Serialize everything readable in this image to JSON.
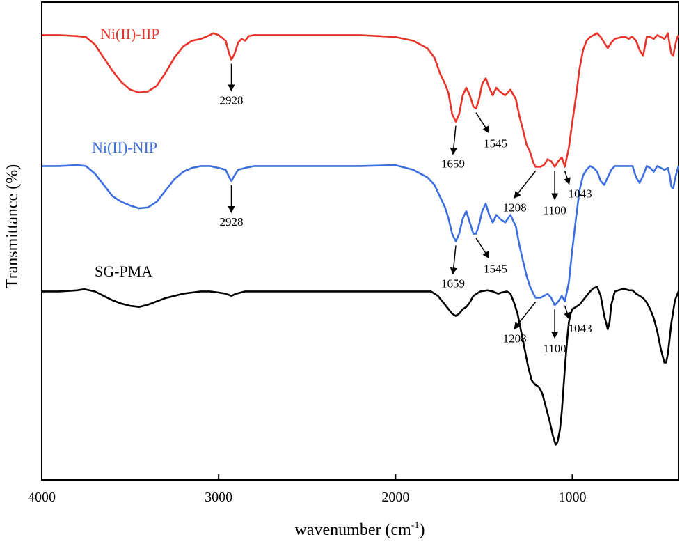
{
  "chart_data": {
    "type": "line",
    "title": "",
    "xlabel": "wavenumber (cm",
    "xlabel_sup": "-1",
    "xlabel_end": ")",
    "ylabel": "Transmittance (%)",
    "xlim": [
      4000,
      400
    ],
    "x_reversed": true,
    "y_ticks_shown": false,
    "grid": false,
    "xticks": [
      {
        "value": 4000,
        "label": "4000"
      },
      {
        "value": 3000,
        "label": "3000"
      },
      {
        "value": 2000,
        "label": "2000"
      },
      {
        "value": 1000,
        "label": "1000"
      }
    ],
    "series": [
      {
        "name": "Ni(II)-IIP",
        "color": "#e8332a",
        "points": [
          [
            4000,
            98
          ],
          [
            3900,
            98
          ],
          [
            3800,
            97.5
          ],
          [
            3750,
            97
          ],
          [
            3700,
            93
          ],
          [
            3650,
            86
          ],
          [
            3600,
            79
          ],
          [
            3550,
            73
          ],
          [
            3500,
            69
          ],
          [
            3450,
            67.5
          ],
          [
            3400,
            68
          ],
          [
            3350,
            71
          ],
          [
            3300,
            78
          ],
          [
            3250,
            86
          ],
          [
            3200,
            92
          ],
          [
            3150,
            95
          ],
          [
            3100,
            96
          ],
          [
            3050,
            98
          ],
          [
            3030,
            99
          ],
          [
            3000,
            98
          ],
          [
            2960,
            95
          ],
          [
            2940,
            88
          ],
          [
            2928,
            85
          ],
          [
            2910,
            88
          ],
          [
            2890,
            94
          ],
          [
            2870,
            96
          ],
          [
            2850,
            95
          ],
          [
            2830,
            97.5
          ],
          [
            2800,
            98
          ],
          [
            2600,
            98
          ],
          [
            2400,
            98
          ],
          [
            2200,
            98
          ],
          [
            2000,
            97
          ],
          [
            1900,
            95
          ],
          [
            1820,
            91
          ],
          [
            1780,
            86
          ],
          [
            1750,
            78
          ],
          [
            1720,
            72
          ],
          [
            1700,
            67
          ],
          [
            1680,
            56
          ],
          [
            1659,
            52
          ],
          [
            1640,
            56
          ],
          [
            1620,
            66
          ],
          [
            1600,
            70
          ],
          [
            1580,
            66
          ],
          [
            1560,
            60
          ],
          [
            1545,
            59
          ],
          [
            1530,
            63
          ],
          [
            1510,
            72
          ],
          [
            1490,
            75
          ],
          [
            1470,
            70
          ],
          [
            1450,
            66
          ],
          [
            1430,
            70
          ],
          [
            1410,
            68
          ],
          [
            1380,
            66
          ],
          [
            1350,
            69
          ],
          [
            1320,
            64
          ],
          [
            1300,
            55
          ],
          [
            1280,
            48
          ],
          [
            1260,
            40
          ],
          [
            1240,
            36
          ],
          [
            1220,
            30
          ],
          [
            1208,
            28
          ],
          [
            1180,
            28
          ],
          [
            1160,
            29
          ],
          [
            1140,
            32
          ],
          [
            1120,
            31
          ],
          [
            1100,
            28
          ],
          [
            1080,
            31
          ],
          [
            1060,
            33
          ],
          [
            1043,
            28
          ],
          [
            1020,
            38
          ],
          [
            1000,
            52
          ],
          [
            980,
            65
          ],
          [
            960,
            80
          ],
          [
            940,
            90
          ],
          [
            920,
            95
          ],
          [
            900,
            97
          ],
          [
            880,
            98
          ],
          [
            860,
            99
          ],
          [
            840,
            97
          ],
          [
            820,
            94
          ],
          [
            800,
            91
          ],
          [
            780,
            94
          ],
          [
            760,
            96
          ],
          [
            720,
            97
          ],
          [
            700,
            97
          ],
          [
            680,
            96
          ],
          [
            670,
            97
          ],
          [
            660,
            97
          ],
          [
            640,
            95
          ],
          [
            620,
            90
          ],
          [
            600,
            87
          ],
          [
            590,
            92
          ],
          [
            580,
            97
          ],
          [
            560,
            97
          ],
          [
            540,
            96
          ],
          [
            520,
            98
          ],
          [
            500,
            97
          ],
          [
            480,
            96
          ],
          [
            460,
            99
          ],
          [
            450,
            93
          ],
          [
            440,
            88
          ],
          [
            430,
            87
          ],
          [
            420,
            92
          ],
          [
            410,
            96
          ],
          [
            400,
            98
          ]
        ]
      },
      {
        "name": "Ni(II)-NIP",
        "color": "#3c6ee0",
        "points": [
          [
            4000,
            98
          ],
          [
            3900,
            98
          ],
          [
            3800,
            98.5
          ],
          [
            3750,
            98
          ],
          [
            3700,
            94
          ],
          [
            3650,
            88
          ],
          [
            3600,
            82
          ],
          [
            3550,
            79
          ],
          [
            3500,
            77
          ],
          [
            3450,
            75.5
          ],
          [
            3400,
            76
          ],
          [
            3350,
            79
          ],
          [
            3300,
            85
          ],
          [
            3250,
            91
          ],
          [
            3200,
            95
          ],
          [
            3150,
            97
          ],
          [
            3100,
            98
          ],
          [
            3050,
            98
          ],
          [
            3000,
            97
          ],
          [
            2960,
            96
          ],
          [
            2940,
            92
          ],
          [
            2928,
            90
          ],
          [
            2910,
            93
          ],
          [
            2890,
            96
          ],
          [
            2850,
            97
          ],
          [
            2800,
            98
          ],
          [
            2400,
            98
          ],
          [
            2200,
            98
          ],
          [
            2000,
            98.5
          ],
          [
            1900,
            96
          ],
          [
            1820,
            92
          ],
          [
            1780,
            88
          ],
          [
            1750,
            82
          ],
          [
            1720,
            76
          ],
          [
            1700,
            70
          ],
          [
            1680,
            62
          ],
          [
            1659,
            58
          ],
          [
            1640,
            62
          ],
          [
            1620,
            70
          ],
          [
            1600,
            74
          ],
          [
            1580,
            68
          ],
          [
            1560,
            62
          ],
          [
            1545,
            62
          ],
          [
            1530,
            66
          ],
          [
            1510,
            74
          ],
          [
            1490,
            78
          ],
          [
            1470,
            72
          ],
          [
            1450,
            68
          ],
          [
            1430,
            72
          ],
          [
            1410,
            70
          ],
          [
            1380,
            68
          ],
          [
            1350,
            72
          ],
          [
            1320,
            66
          ],
          [
            1300,
            56
          ],
          [
            1280,
            48
          ],
          [
            1260,
            40
          ],
          [
            1240,
            34
          ],
          [
            1220,
            30
          ],
          [
            1208,
            28
          ],
          [
            1180,
            28
          ],
          [
            1160,
            29
          ],
          [
            1140,
            30
          ],
          [
            1120,
            28
          ],
          [
            1100,
            24
          ],
          [
            1080,
            26
          ],
          [
            1060,
            29
          ],
          [
            1043,
            26
          ],
          [
            1020,
            36
          ],
          [
            1000,
            54
          ],
          [
            980,
            70
          ],
          [
            960,
            85
          ],
          [
            940,
            93
          ],
          [
            920,
            96
          ],
          [
            900,
            98
          ],
          [
            880,
            97
          ],
          [
            860,
            95
          ],
          [
            840,
            90
          ],
          [
            820,
            88
          ],
          [
            800,
            92
          ],
          [
            780,
            96
          ],
          [
            760,
            98
          ],
          [
            700,
            98
          ],
          [
            680,
            98
          ],
          [
            660,
            98
          ],
          [
            640,
            92
          ],
          [
            620,
            89
          ],
          [
            600,
            93
          ],
          [
            580,
            98
          ],
          [
            560,
            97
          ],
          [
            540,
            95
          ],
          [
            520,
            98
          ],
          [
            500,
            97
          ],
          [
            480,
            96
          ],
          [
            460,
            97
          ],
          [
            450,
            93
          ],
          [
            440,
            87
          ],
          [
            430,
            86
          ],
          [
            420,
            91
          ],
          [
            410,
            95
          ],
          [
            400,
            98
          ]
        ]
      },
      {
        "name": "SG-PMA",
        "color": "#000000",
        "points": [
          [
            4000,
            98
          ],
          [
            3900,
            98
          ],
          [
            3800,
            98.5
          ],
          [
            3760,
            99
          ],
          [
            3700,
            98
          ],
          [
            3650,
            96
          ],
          [
            3600,
            94
          ],
          [
            3550,
            92.5
          ],
          [
            3500,
            91.5
          ],
          [
            3450,
            91
          ],
          [
            3400,
            92
          ],
          [
            3350,
            93.5
          ],
          [
            3300,
            95
          ],
          [
            3250,
            96
          ],
          [
            3200,
            97
          ],
          [
            3150,
            97.5
          ],
          [
            3100,
            98
          ],
          [
            3050,
            98
          ],
          [
            3000,
            97.5
          ],
          [
            2960,
            97
          ],
          [
            2928,
            96
          ],
          [
            2900,
            97
          ],
          [
            2850,
            98
          ],
          [
            2800,
            98
          ],
          [
            2400,
            98
          ],
          [
            2000,
            98
          ],
          [
            1800,
            98
          ],
          [
            1760,
            96
          ],
          [
            1720,
            92
          ],
          [
            1700,
            90
          ],
          [
            1680,
            88
          ],
          [
            1660,
            87
          ],
          [
            1640,
            88
          ],
          [
            1620,
            90
          ],
          [
            1600,
            91
          ],
          [
            1580,
            93
          ],
          [
            1560,
            96
          ],
          [
            1520,
            98
          ],
          [
            1480,
            98.5
          ],
          [
            1450,
            98
          ],
          [
            1420,
            97
          ],
          [
            1400,
            97.5
          ],
          [
            1370,
            98
          ],
          [
            1350,
            97
          ],
          [
            1330,
            93
          ],
          [
            1310,
            88
          ],
          [
            1290,
            80
          ],
          [
            1270,
            72
          ],
          [
            1250,
            64
          ],
          [
            1230,
            58
          ],
          [
            1210,
            56
          ],
          [
            1190,
            55
          ],
          [
            1170,
            52
          ],
          [
            1150,
            46
          ],
          [
            1130,
            40
          ],
          [
            1110,
            33
          ],
          [
            1095,
            29
          ],
          [
            1085,
            30
          ],
          [
            1070,
            36
          ],
          [
            1060,
            44
          ],
          [
            1050,
            55
          ],
          [
            1040,
            66
          ],
          [
            1030,
            76
          ],
          [
            1020,
            84
          ],
          [
            1010,
            88
          ],
          [
            1000,
            90
          ],
          [
            980,
            91
          ],
          [
            960,
            92
          ],
          [
            940,
            94
          ],
          [
            920,
            96
          ],
          [
            900,
            98
          ],
          [
            880,
            99.5
          ],
          [
            860,
            100
          ],
          [
            840,
            96
          ],
          [
            820,
            87
          ],
          [
            800,
            81
          ],
          [
            790,
            84
          ],
          [
            780,
            92
          ],
          [
            760,
            98
          ],
          [
            740,
            98.5
          ],
          [
            720,
            99
          ],
          [
            700,
            99
          ],
          [
            680,
            98.5
          ],
          [
            660,
            98.5
          ],
          [
            640,
            97
          ],
          [
            620,
            96
          ],
          [
            600,
            95
          ],
          [
            580,
            93
          ],
          [
            560,
            90
          ],
          [
            540,
            86
          ],
          [
            520,
            80
          ],
          [
            500,
            72
          ],
          [
            480,
            66
          ],
          [
            470,
            66
          ],
          [
            460,
            70
          ],
          [
            440,
            84
          ],
          [
            420,
            94
          ],
          [
            400,
            98
          ]
        ]
      }
    ],
    "annotations": [
      {
        "series": 0,
        "label": "2928",
        "x": 2928
      },
      {
        "series": 0,
        "label": "1659",
        "x": 1659
      },
      {
        "series": 0,
        "label": "1545",
        "x": 1545
      },
      {
        "series": 0,
        "label": "1208",
        "x": 1208
      },
      {
        "series": 0,
        "label": "1100",
        "x": 1100
      },
      {
        "series": 0,
        "label": "1043",
        "x": 1043
      },
      {
        "series": 1,
        "label": "2928",
        "x": 2928
      },
      {
        "series": 1,
        "label": "1659",
        "x": 1659
      },
      {
        "series": 1,
        "label": "1545",
        "x": 1545
      },
      {
        "series": 1,
        "label": "1208",
        "x": 1208
      },
      {
        "series": 1,
        "label": "1100",
        "x": 1100
      },
      {
        "series": 1,
        "label": "1043",
        "x": 1043
      }
    ]
  }
}
